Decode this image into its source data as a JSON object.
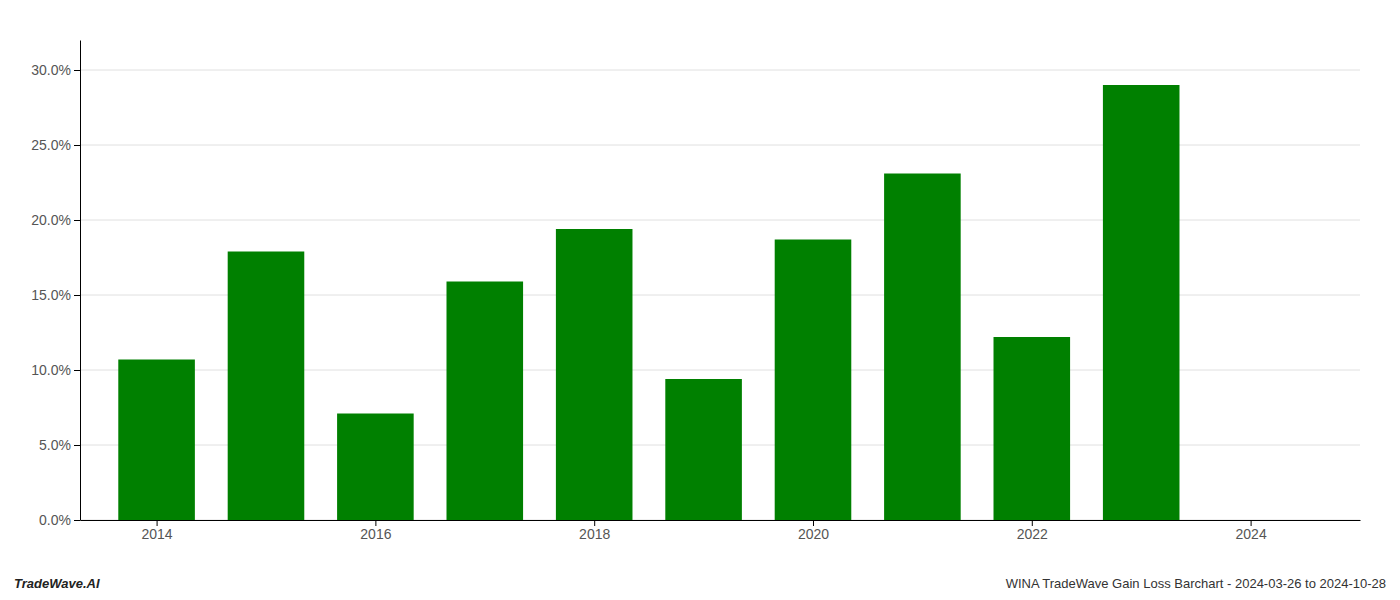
{
  "chart_data": {
    "type": "bar",
    "x": [
      2014,
      2015,
      2016,
      2017,
      2018,
      2019,
      2020,
      2021,
      2022,
      2023
    ],
    "values": [
      0.107,
      0.179,
      0.071,
      0.159,
      0.194,
      0.094,
      0.187,
      0.231,
      0.122,
      0.29
    ],
    "color": "#008000",
    "xlim": [
      2013.3,
      2025.0
    ],
    "xticks": [
      2014,
      2016,
      2018,
      2020,
      2022,
      2024
    ],
    "ylim": [
      0,
      0.32
    ],
    "yticks": [
      {
        "value": 0.0,
        "label": "0.0%"
      },
      {
        "value": 0.05,
        "label": "5.0%"
      },
      {
        "value": 0.1,
        "label": "10.0%"
      },
      {
        "value": 0.15,
        "label": "15.0%"
      },
      {
        "value": 0.2,
        "label": "20.0%"
      },
      {
        "value": 0.25,
        "label": "25.0%"
      },
      {
        "value": 0.3,
        "label": "30.0%"
      }
    ],
    "grid": true,
    "annotations": [
      "TradeWave.AI",
      "WINA TradeWave Gain Loss Barchart - 2024-03-26 to 2024-10-28"
    ]
  }
}
